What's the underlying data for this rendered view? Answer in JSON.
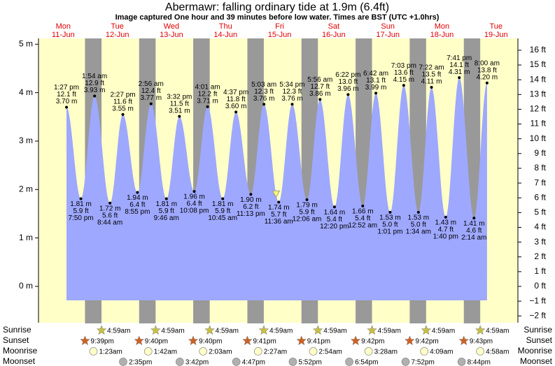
{
  "chart_data": {
    "type": "tide",
    "title": "Abermawr: falling  ordinary tide at 1.9m (6.4ft)",
    "subtitle": "Image captured One hour and 39 minutes before low water. Times are BST (UTC +1.0hrs)",
    "categories": [
      "Mon",
      "Tue",
      "Wed",
      "Thu",
      "Fri",
      "Sat",
      "Sun",
      "Mon",
      "Tue"
    ],
    "dates": [
      "11-Jun",
      "12-Jun",
      "13-Jun",
      "14-Jun",
      "15-Jun",
      "16-Jun",
      "17-Jun",
      "18-Jun",
      "19-Jun"
    ],
    "x": [
      "1:27 pm",
      "7:50 pm",
      "1:54 am",
      "8:44 am",
      "2:27 pm",
      "8:55 pm",
      "2:56 am",
      "9:46 am",
      "3:32 pm",
      "10:08 pm",
      "4:01 am",
      "10:45 am",
      "4:37 pm",
      "11:13 pm",
      "5:03 am",
      "11:36 am",
      "5:34 pm",
      "12:06 am",
      "5:56 am",
      "12:20 pm",
      "6:22 pm",
      "12:52 am",
      "6:42 am",
      "1:01 pm",
      "7:03 pm",
      "1:34 am",
      "7:22 am",
      "1:40 pm",
      "7:41 pm",
      "2:14 am",
      "8:00 am"
    ],
    "values": [
      3.7,
      1.81,
      3.93,
      1.72,
      3.55,
      1.94,
      3.77,
      1.81,
      3.51,
      1.96,
      3.71,
      1.81,
      3.6,
      1.9,
      3.76,
      1.74,
      3.76,
      1.79,
      3.86,
      1.64,
      3.96,
      1.66,
      3.99,
      1.53,
      4.15,
      1.53,
      4.11,
      1.43,
      4.31,
      1.41,
      4.2
    ],
    "value_labels": [
      "3.70 m",
      "1.81 m",
      "3.93 m",
      "1.72 m",
      "3.55 m",
      "1.94 m",
      "3.77 m",
      "1.81 m",
      "3.51 m",
      "1.96 m",
      "3.71 m",
      "1.81 m",
      "3.60 m",
      "1.90 m",
      "3.76 m",
      "1.74 m",
      "3.76 m",
      "1.79 m",
      "3.86 m",
      "1.64 m",
      "3.96 m",
      "1.66 m",
      "3.99 m",
      "1.53 m",
      "4.15 m",
      "1.53 m",
      "4.11 m",
      "1.43 m",
      "4.31 m",
      "1.41 m",
      "4.20 m"
    ],
    "value_labels_ft": [
      "12.1 ft",
      "5.9 ft",
      "12.9 ft",
      "5.6 ft",
      "11.6 ft",
      "6.4 ft",
      "12.4 ft",
      "5.9 ft",
      "11.5 ft",
      "6.4 ft",
      "12.2 ft",
      "5.9 ft",
      "11.8 ft",
      "6.2 ft",
      "12.3 ft",
      "5.7 ft",
      "12.3 ft",
      "5.9 ft",
      "12.7 ft",
      "5.4 ft",
      "13.0 ft",
      "5.4 ft",
      "13.1 ft",
      "5.0 ft",
      "13.6 ft",
      "5.0 ft",
      "13.5 ft",
      "4.7 ft",
      "14.1 ft",
      "4.6 ft",
      "13.8 ft"
    ],
    "color": "#9ea8ff",
    "current_level": 1.9,
    "ylim": [
      -0.75,
      5.12
    ],
    "yticks": [
      {
        "value": 0,
        "label": "0 m"
      },
      {
        "value": 1,
        "label": "1 m"
      },
      {
        "value": 2,
        "label": "2 m"
      },
      {
        "value": 3,
        "label": "3 m"
      },
      {
        "value": 4,
        "label": "4 m"
      },
      {
        "value": 5,
        "label": "5 m"
      }
    ],
    "y2lim": [
      -2.46,
      16.8
    ],
    "y2ticks": [
      {
        "value": -2,
        "label": "−2 ft"
      },
      {
        "value": -1,
        "label": "−1 ft"
      },
      {
        "value": 0,
        "label": "0 ft"
      },
      {
        "value": 1,
        "label": "1 ft"
      },
      {
        "value": 2,
        "label": "2 ft"
      },
      {
        "value": 3,
        "label": "3 ft"
      },
      {
        "value": 4,
        "label": "4 ft"
      },
      {
        "value": 5,
        "label": "5 ft"
      },
      {
        "value": 6,
        "label": "6 ft"
      },
      {
        "value": 7,
        "label": "7 ft"
      },
      {
        "value": 8,
        "label": "8 ft"
      },
      {
        "value": 9,
        "label": "9 ft"
      },
      {
        "value": 10,
        "label": "10 ft"
      },
      {
        "value": 11,
        "label": "11 ft"
      },
      {
        "value": 12,
        "label": "12 ft"
      },
      {
        "value": 13,
        "label": "13 ft"
      },
      {
        "value": 14,
        "label": "14 ft"
      },
      {
        "value": 15,
        "label": "15 ft"
      },
      {
        "value": 16,
        "label": "16 ft"
      }
    ],
    "rows": [
      {
        "label": "Sunrise",
        "times": [
          null,
          "4:59am",
          "4:59am",
          "4:59am",
          "4:59am",
          "4:59am",
          "4:59am",
          "4:59am",
          "4:59am"
        ]
      },
      {
        "label": "Sunset",
        "times": [
          "9:39pm",
          "9:40pm",
          "9:40pm",
          "9:41pm",
          "9:41pm",
          "9:42pm",
          "9:42pm",
          "9:43pm",
          null
        ]
      },
      {
        "label": "Moonrise",
        "times": [
          null,
          "1:23am",
          "1:42am",
          "2:03am",
          "2:27am",
          "2:54am",
          "3:28am",
          "4:09am",
          "4:58am"
        ]
      },
      {
        "label": "Moonset",
        "times": [
          null,
          "2:35pm",
          "3:42pm",
          "4:47pm",
          "5:52pm",
          "6:54pm",
          "7:52pm",
          "8:44pm",
          null
        ]
      }
    ]
  }
}
